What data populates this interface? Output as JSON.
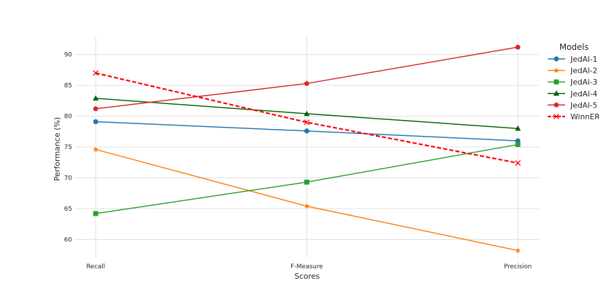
{
  "chart_data": {
    "type": "line",
    "title": "",
    "xlabel": "Scores",
    "ylabel": "Performance (%)",
    "categories": [
      "Recall",
      "F-Measure",
      "Precision"
    ],
    "ylim": [
      57,
      93
    ],
    "yticks": [
      60,
      65,
      70,
      75,
      80,
      85,
      90
    ],
    "grid": true,
    "legend": {
      "title": "Models",
      "placement": "right"
    },
    "series": [
      {
        "name": "JedAI-1",
        "values": [
          79.1,
          77.6,
          76.0
        ],
        "color": "#1f77b4",
        "marker": "circle",
        "dash": "solid"
      },
      {
        "name": "JedAI-2",
        "values": [
          74.6,
          65.4,
          58.2
        ],
        "color": "#ff7f0e",
        "marker": "star",
        "dash": "solid"
      },
      {
        "name": "JedAI-3",
        "values": [
          64.2,
          69.3,
          75.4
        ],
        "color": "#2ca02c",
        "marker": "square",
        "dash": "solid"
      },
      {
        "name": "JedAI-4",
        "values": [
          82.9,
          80.4,
          78.0
        ],
        "color": "#006400",
        "marker": "triangle",
        "dash": "solid"
      },
      {
        "name": "JedAI-5",
        "values": [
          81.2,
          85.3,
          91.2
        ],
        "color": "#d62728",
        "marker": "pentagon",
        "dash": "solid"
      },
      {
        "name": "WinnER",
        "values": [
          87.0,
          79.0,
          72.4
        ],
        "color": "#ff0000",
        "marker": "x",
        "dash": "dashed"
      }
    ]
  }
}
